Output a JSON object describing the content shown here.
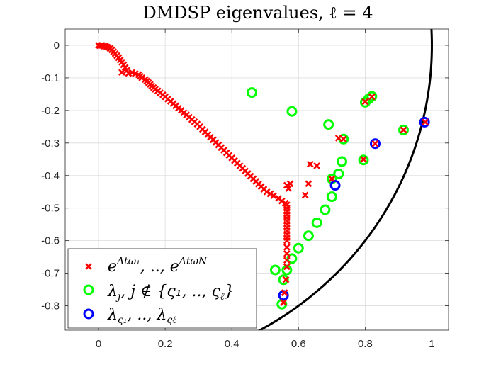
{
  "chart_data": {
    "type": "scatter",
    "title": "DMDSP eigenvalues, ℓ = 4",
    "xlabel": "",
    "ylabel": "",
    "xlim": [
      -0.1,
      1.05
    ],
    "ylim": [
      -0.875,
      0.05
    ],
    "grid": true,
    "x_ticks": [
      0,
      0.2,
      0.4,
      0.6,
      0.8,
      1
    ],
    "x_tick_labels": [
      "0",
      "0.2",
      "0.4",
      "0.6",
      "0.8",
      "1"
    ],
    "y_ticks": [
      0,
      -0.1,
      -0.2,
      -0.3,
      -0.4,
      -0.5,
      -0.6,
      -0.7,
      -0.8
    ],
    "y_tick_labels": [
      "0",
      "-0.1",
      "-0.2",
      "-0.3",
      "-0.4",
      "-0.5",
      "-0.6",
      "-0.7",
      "-0.8"
    ],
    "legend_position": "bottom-left",
    "unit_circle": {
      "color": "#000000",
      "label": ""
    },
    "series": [
      {
        "name": "e^{Δtω₁}, .., e^{Δtω_N}",
        "legend_label": "eΔtω₁, .., eΔtωN",
        "marker": "x",
        "color": "#ff0000",
        "points": [
          [
            0,
            0
          ],
          [
            0.005,
            -0.002
          ],
          [
            0.01,
            0
          ],
          [
            0.015,
            -0.003
          ],
          [
            0.02,
            -0.002
          ],
          [
            0.025,
            -0.005
          ],
          [
            0.03,
            -0.006
          ],
          [
            0.035,
            -0.01
          ],
          [
            0.04,
            -0.014
          ],
          [
            0.045,
            -0.02
          ],
          [
            0.05,
            -0.026
          ],
          [
            0.055,
            -0.032
          ],
          [
            0.06,
            -0.038
          ],
          [
            0.065,
            -0.045
          ],
          [
            0.07,
            -0.052
          ],
          [
            0.075,
            -0.06
          ],
          [
            0.08,
            -0.068
          ],
          [
            0.085,
            -0.077
          ],
          [
            0.09,
            -0.086
          ],
          [
            0.07,
            -0.083
          ],
          [
            0.1,
            -0.084
          ],
          [
            0.11,
            -0.087
          ],
          [
            0.12,
            -0.09
          ],
          [
            0.125,
            -0.095
          ],
          [
            0.13,
            -0.1
          ],
          [
            0.14,
            -0.105
          ],
          [
            0.145,
            -0.11
          ],
          [
            0.15,
            -0.115
          ],
          [
            0.155,
            -0.12
          ],
          [
            0.16,
            -0.125
          ],
          [
            0.165,
            -0.13
          ],
          [
            0.17,
            -0.135
          ],
          [
            0.178,
            -0.14
          ],
          [
            0.185,
            -0.146
          ],
          [
            0.193,
            -0.152
          ],
          [
            0.2,
            -0.158
          ],
          [
            0.208,
            -0.165
          ],
          [
            0.216,
            -0.172
          ],
          [
            0.224,
            -0.179
          ],
          [
            0.232,
            -0.186
          ],
          [
            0.24,
            -0.193
          ],
          [
            0.248,
            -0.2
          ],
          [
            0.256,
            -0.207
          ],
          [
            0.264,
            -0.214
          ],
          [
            0.272,
            -0.221
          ],
          [
            0.28,
            -0.228
          ],
          [
            0.288,
            -0.235
          ],
          [
            0.296,
            -0.242
          ],
          [
            0.304,
            -0.25
          ],
          [
            0.312,
            -0.258
          ],
          [
            0.32,
            -0.266
          ],
          [
            0.328,
            -0.274
          ],
          [
            0.336,
            -0.282
          ],
          [
            0.344,
            -0.29
          ],
          [
            0.352,
            -0.298
          ],
          [
            0.36,
            -0.306
          ],
          [
            0.368,
            -0.314
          ],
          [
            0.376,
            -0.322
          ],
          [
            0.384,
            -0.33
          ],
          [
            0.392,
            -0.338
          ],
          [
            0.4,
            -0.346
          ],
          [
            0.408,
            -0.354
          ],
          [
            0.416,
            -0.362
          ],
          [
            0.424,
            -0.37
          ],
          [
            0.432,
            -0.378
          ],
          [
            0.44,
            -0.386
          ],
          [
            0.448,
            -0.394
          ],
          [
            0.456,
            -0.402
          ],
          [
            0.464,
            -0.41
          ],
          [
            0.472,
            -0.418
          ],
          [
            0.48,
            -0.426
          ],
          [
            0.488,
            -0.434
          ],
          [
            0.496,
            -0.442
          ],
          [
            0.505,
            -0.45
          ],
          [
            0.515,
            -0.456
          ],
          [
            0.525,
            -0.462
          ],
          [
            0.54,
            -0.47
          ],
          [
            0.55,
            -0.478
          ],
          [
            0.56,
            -0.485
          ],
          [
            0.565,
            -0.43
          ],
          [
            0.57,
            -0.44
          ],
          [
            0.575,
            -0.425
          ],
          [
            0.565,
            -0.49
          ],
          [
            0.565,
            -0.5
          ],
          [
            0.565,
            -0.51
          ],
          [
            0.565,
            -0.52
          ],
          [
            0.565,
            -0.53
          ],
          [
            0.565,
            -0.54
          ],
          [
            0.565,
            -0.55
          ],
          [
            0.565,
            -0.56
          ],
          [
            0.565,
            -0.57
          ],
          [
            0.565,
            -0.58
          ],
          [
            0.565,
            -0.59
          ],
          [
            0.565,
            -0.6
          ],
          [
            0.565,
            -0.62
          ],
          [
            0.565,
            -0.64
          ],
          [
            0.565,
            -0.66
          ],
          [
            0.565,
            -0.68
          ],
          [
            0.562,
            -0.72
          ],
          [
            0.558,
            -0.76
          ],
          [
            0.555,
            -0.79
          ],
          [
            0.62,
            -0.46
          ],
          [
            0.63,
            -0.425
          ],
          [
            0.635,
            -0.365
          ],
          [
            0.655,
            -0.37
          ],
          [
            0.7,
            -0.41
          ],
          [
            0.72,
            -0.285
          ],
          [
            0.735,
            -0.288
          ],
          [
            0.795,
            -0.35
          ],
          [
            0.8,
            -0.173
          ],
          [
            0.82,
            -0.158
          ],
          [
            0.83,
            -0.302
          ],
          [
            0.915,
            -0.26
          ],
          [
            0.98,
            -0.236
          ]
        ]
      },
      {
        "name": "λ_j, j ∉ {ς₁, .., ς_ℓ}",
        "legend_label": "λj, j ∉ {ς₁, .., ςℓ}",
        "marker": "o",
        "color": "#00ff00",
        "points": [
          [
            0.46,
            -0.145
          ],
          [
            0.58,
            -0.203
          ],
          [
            0.69,
            -0.243
          ],
          [
            0.735,
            -0.288
          ],
          [
            0.73,
            -0.357
          ],
          [
            0.72,
            -0.395
          ],
          [
            0.7,
            -0.465
          ],
          [
            0.68,
            -0.505
          ],
          [
            0.655,
            -0.545
          ],
          [
            0.63,
            -0.585
          ],
          [
            0.6,
            -0.623
          ],
          [
            0.58,
            -0.655
          ],
          [
            0.565,
            -0.69
          ],
          [
            0.555,
            -0.72
          ],
          [
            0.53,
            -0.69
          ],
          [
            0.55,
            -0.795
          ],
          [
            0.8,
            -0.175
          ],
          [
            0.81,
            -0.165
          ],
          [
            0.82,
            -0.157
          ],
          [
            0.795,
            -0.352
          ],
          [
            0.915,
            -0.26
          ],
          [
            0.7,
            -0.41
          ]
        ]
      },
      {
        "name": "λ_{ς₁}, .., λ_{ςℓ}",
        "legend_label": "λς₁, .., λςℓ",
        "marker": "o",
        "color": "#0000ff",
        "points": [
          [
            0.978,
            -0.236
          ],
          [
            0.83,
            -0.302
          ],
          [
            0.71,
            -0.43
          ],
          [
            0.555,
            -0.768
          ]
        ]
      }
    ]
  }
}
